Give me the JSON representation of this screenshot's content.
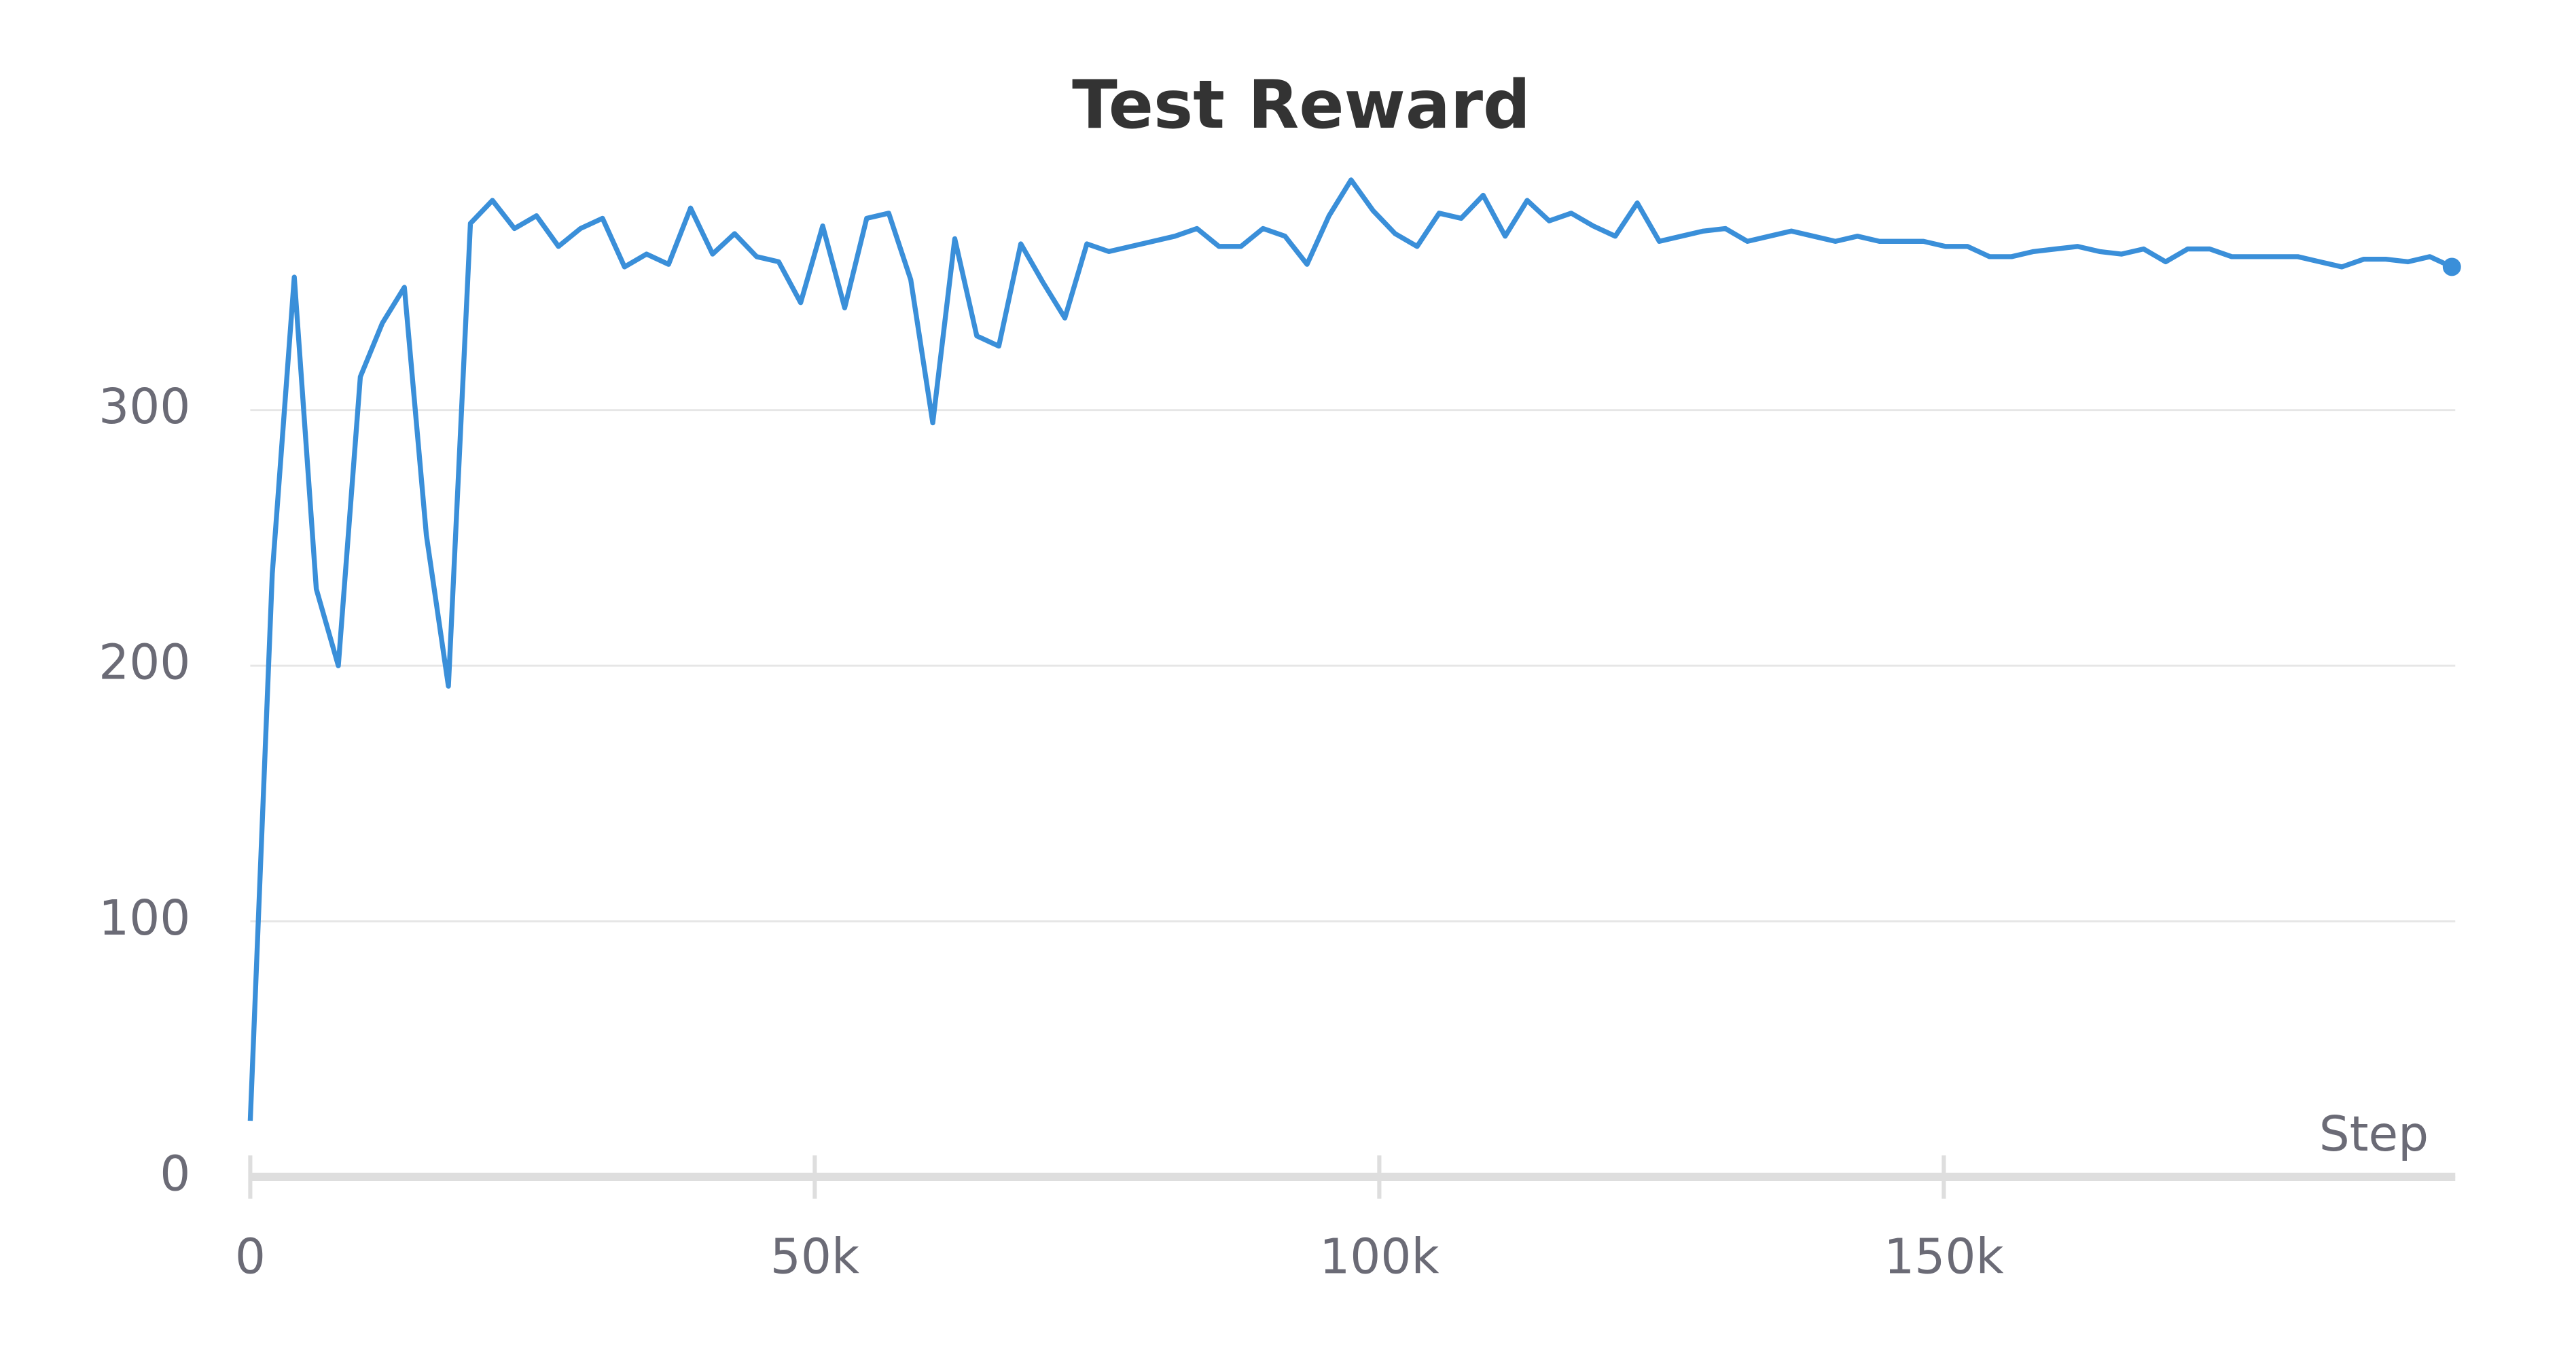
{
  "chart_data": {
    "type": "line",
    "title": "Test Reward",
    "x_label": "Step",
    "x": [
      0,
      1950,
      3900,
      5850,
      7800,
      9750,
      11700,
      13650,
      15600,
      17550,
      19500,
      21450,
      23400,
      25350,
      27300,
      29250,
      31200,
      33150,
      35100,
      37050,
      39000,
      40950,
      42900,
      44850,
      46800,
      48750,
      50700,
      52650,
      54600,
      56550,
      58500,
      60450,
      62400,
      64350,
      66300,
      68250,
      70200,
      72150,
      74100,
      76050,
      78000,
      79950,
      81900,
      83850,
      85800,
      87750,
      89700,
      91650,
      93600,
      95550,
      97500,
      99450,
      101400,
      103350,
      105300,
      107250,
      109200,
      111150,
      113100,
      115050,
      117000,
      118950,
      120900,
      122850,
      124800,
      126750,
      128700,
      130650,
      132600,
      134550,
      136500,
      138450,
      140400,
      142350,
      144300,
      146250,
      148200,
      150150,
      152100,
      154050,
      156000,
      157950,
      159900,
      161850,
      163800,
      165750,
      167700,
      169650,
      171600,
      173550,
      175500,
      177450,
      179400,
      181350,
      183300,
      185250,
      187200,
      189150,
      191100,
      193050,
      195000
    ],
    "series": [
      {
        "name": "Test Reward",
        "color": "#3a8fd9",
        "values": [
          22,
          236,
          352,
          230,
          200,
          313,
          334,
          348,
          251,
          192,
          373,
          382,
          371,
          376,
          364,
          371,
          375,
          356,
          361,
          357,
          379,
          361,
          369,
          360,
          358,
          342,
          372,
          340,
          375,
          377,
          351,
          295,
          367,
          329,
          325,
          365,
          350,
          336,
          365,
          362,
          364,
          366,
          368,
          371,
          364,
          364,
          371,
          368,
          357,
          376,
          390,
          378,
          369,
          364,
          377,
          375,
          384,
          368,
          382,
          374,
          377,
          372,
          368,
          381,
          366,
          368,
          370,
          371,
          366,
          368,
          370,
          368,
          366,
          368,
          366,
          366,
          366,
          364,
          364,
          360,
          360,
          362,
          363,
          364,
          362,
          361,
          363,
          358,
          363,
          363,
          360,
          360,
          360,
          360,
          358,
          356,
          359,
          359,
          358,
          360,
          356
        ]
      }
    ],
    "xlim": [
      0,
      195300
    ],
    "ylim": [
      0,
      400
    ],
    "xticks": [
      0,
      {
        "value": 50000,
        "label": "50k"
      },
      {
        "value": 100000,
        "label": "100k"
      },
      {
        "value": 150000,
        "label": "150k"
      }
    ],
    "yticks": [
      0,
      100,
      200,
      300
    ],
    "grid": true
  }
}
